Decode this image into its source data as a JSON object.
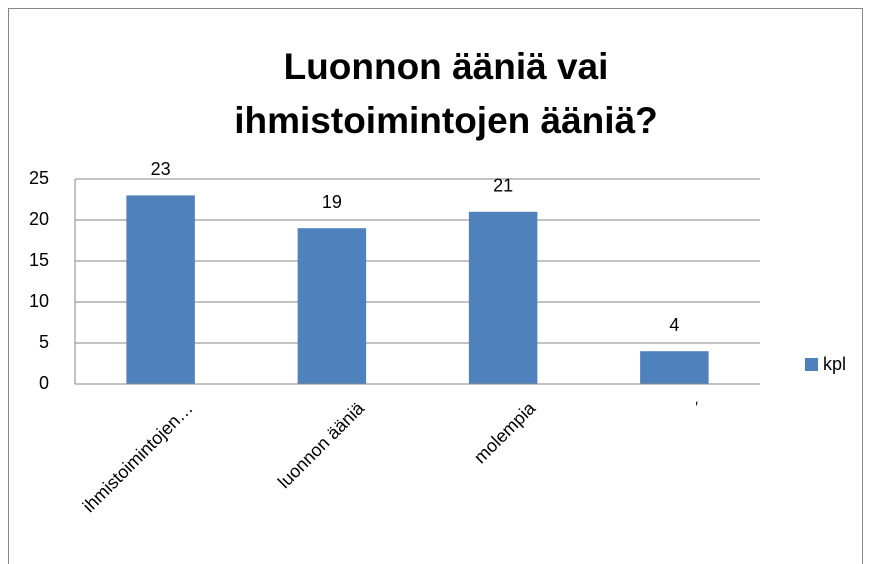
{
  "chart_data": {
    "type": "bar",
    "title": "Luonnon ääniä vai ihmistoimintojen ääniä?",
    "categories": [
      "ihmistoimintojen…",
      "luonnon ääniä",
      "molempia",
      "´"
    ],
    "series": [
      {
        "name": "kpl",
        "color": "#4f81bd",
        "values": [
          23,
          19,
          21,
          4
        ]
      }
    ],
    "ylim": [
      0,
      25
    ],
    "yticks": [
      0,
      5,
      10,
      15,
      20,
      25
    ],
    "grid": true,
    "legend": "right",
    "data_labels": true
  }
}
